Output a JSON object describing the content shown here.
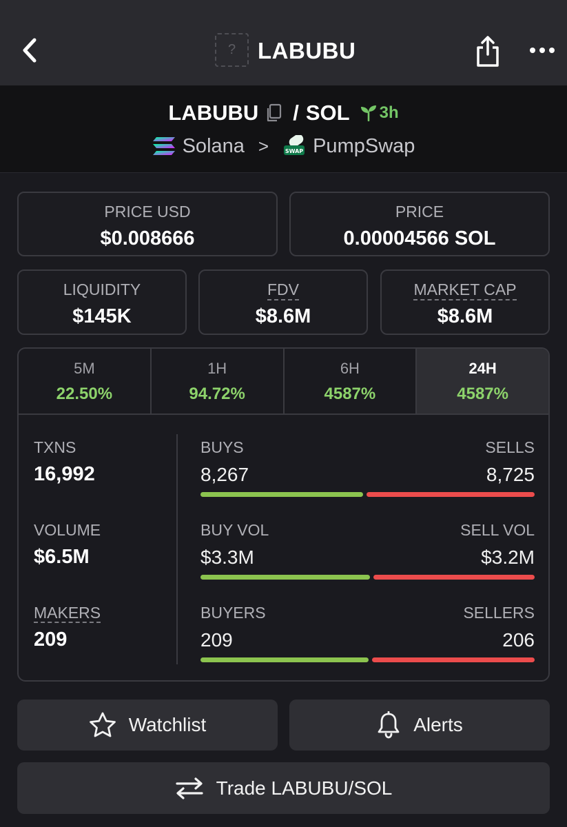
{
  "topbar": {
    "title": "LABUBU",
    "logo_placeholder": "?",
    "icons": {
      "back": "chevron-left-icon",
      "share": "share-icon",
      "more": "more-horizontal-icon"
    }
  },
  "pair": {
    "base": "LABUBU",
    "separator": "/",
    "quote": "SOL",
    "age": "3h",
    "chain": "Solana",
    "dex": "PumpSwap",
    "chevron": ">"
  },
  "stats": {
    "price_usd_label": "PRICE USD",
    "price_usd": "$0.008666",
    "price_label": "PRICE",
    "price": "0.00004566 SOL",
    "liquidity_label": "LIQUIDITY",
    "liquidity": "$145K",
    "fdv_label": "FDV",
    "fdv": "$8.6M",
    "mcap_label": "MARKET CAP",
    "mcap": "$8.6M"
  },
  "timeframes": [
    {
      "label": "5M",
      "change": "22.50%"
    },
    {
      "label": "1H",
      "change": "94.72%"
    },
    {
      "label": "6H",
      "change": "4587%"
    },
    {
      "label": "24H",
      "change": "4587%"
    }
  ],
  "active_timeframe": "24H",
  "txn_stats": {
    "txns_label": "TXNS",
    "txns": "16,992",
    "volume_label": "VOLUME",
    "volume": "$6.5M",
    "makers_label": "MAKERS",
    "makers": "209",
    "buys_label": "BUYS",
    "buys": "8,267",
    "sells_label": "SELLS",
    "sells": "8,725",
    "buys_fraction": 0.4865,
    "buy_vol_label": "BUY VOL",
    "buy_vol": "$3.3M",
    "sell_vol_label": "SELL VOL",
    "sell_vol": "$3.2M",
    "buy_vol_fraction": 0.5077,
    "buyers_label": "BUYERS",
    "buyers": "209",
    "sellers_label": "SELLERS",
    "sellers": "206",
    "buyers_fraction": 0.5036
  },
  "colors": {
    "positive": "#8dd36b",
    "buy_bar": "#8cc44f",
    "sell_bar": "#ec4c4c",
    "age": "#74c566"
  },
  "actions": {
    "watchlist": "Watchlist",
    "alerts": "Alerts",
    "trade": "Trade LABUBU/SOL"
  }
}
